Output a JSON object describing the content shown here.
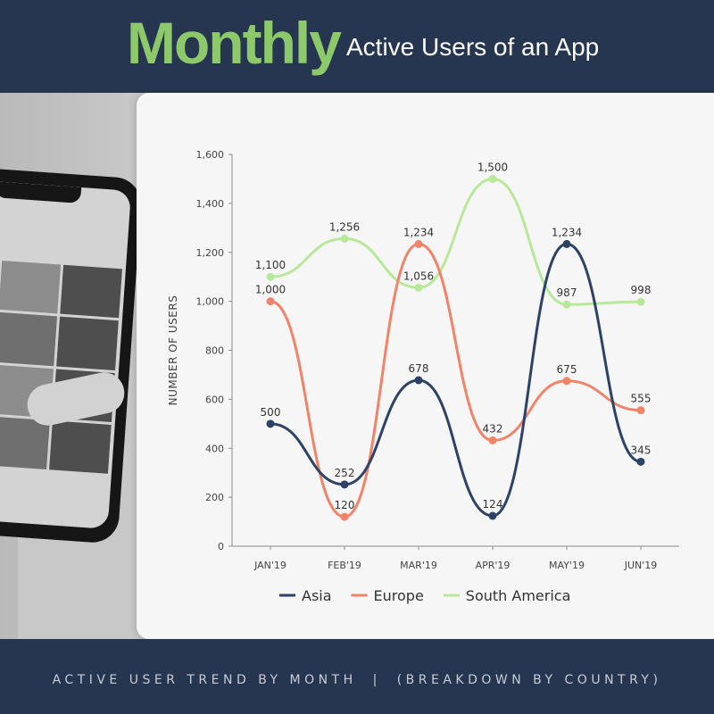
{
  "header": {
    "title_main": "Monthly",
    "title_sub": "Active Users of an App"
  },
  "footer": {
    "text": "ACTIVE USER TREND BY MONTH  |  (BREAKDOWN BY COUNTRY)"
  },
  "colors": {
    "background": "#273650",
    "accent_green": "#8dc96b",
    "asia": "#2c4266",
    "europe": "#f0846a",
    "south_america": "#b8e89a"
  },
  "chart_data": {
    "type": "line",
    "title": "",
    "xlabel": "",
    "ylabel": "NUMBER OF USERS",
    "categories": [
      "JAN'19",
      "FEB'19",
      "MAR'19",
      "APR'19",
      "MAY'19",
      "JUN'19"
    ],
    "ylim": [
      0,
      1600
    ],
    "yticks": [
      0,
      200,
      400,
      600,
      800,
      1000,
      1200,
      1400,
      1600
    ],
    "ytick_labels": [
      "0",
      "200",
      "400",
      "600",
      "800",
      "1,000",
      "1,200",
      "1,400",
      "1,600"
    ],
    "smooth": true,
    "grid": false,
    "legend_position": "bottom",
    "series": [
      {
        "name": "Asia",
        "color": "#2c4266",
        "values": [
          500,
          252,
          678,
          124,
          1234,
          345
        ],
        "labels": [
          "500",
          "252",
          "678",
          "124",
          "1,234",
          "345"
        ]
      },
      {
        "name": "Europe",
        "color": "#f0846a",
        "values": [
          1000,
          120,
          1234,
          432,
          675,
          555
        ],
        "labels": [
          "1,000",
          "120",
          "1,234",
          "432",
          "675",
          "555"
        ]
      },
      {
        "name": "South America",
        "color": "#b8e89a",
        "values": [
          1100,
          1256,
          1056,
          1500,
          987,
          998
        ],
        "labels": [
          "1,100",
          "1,256",
          "1,056",
          "1,500",
          "987",
          "998"
        ]
      }
    ]
  }
}
